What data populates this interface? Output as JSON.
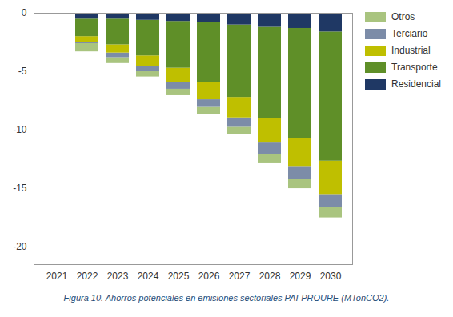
{
  "chart_data": {
    "type": "bar",
    "stacked": true,
    "caption": "Figura 10. Ahorros potenciales en emisiones sectoriales PAI-PROURE (MTonCO2).",
    "categories": [
      "2021",
      "2022",
      "2023",
      "2024",
      "2025",
      "2026",
      "2027",
      "2028",
      "2029",
      "2030"
    ],
    "series": [
      {
        "name": "Otros",
        "color": "#a9c47f",
        "values": [
          0,
          -0.7,
          -0.5,
          -0.45,
          -0.55,
          -0.6,
          -0.65,
          -0.75,
          -0.8,
          -0.9
        ]
      },
      {
        "name": "Terciario",
        "color": "#7c8ca8",
        "values": [
          0,
          -0.1,
          -0.4,
          -0.45,
          -0.55,
          -0.65,
          -0.8,
          -0.95,
          -1.1,
          -1.1
        ]
      },
      {
        "name": "Industrial",
        "color": "#bfbf00",
        "values": [
          0,
          -0.5,
          -0.7,
          -0.9,
          -1.25,
          -1.5,
          -1.75,
          -2.1,
          -2.4,
          -2.85
        ]
      },
      {
        "name": "Transporte",
        "color": "#5f8f28",
        "values": [
          0,
          -1.5,
          -2.2,
          -3.05,
          -4.0,
          -5.1,
          -6.2,
          -7.8,
          -9.4,
          -11.05
        ]
      },
      {
        "name": "Residencial",
        "color": "#1f3864",
        "values": [
          0,
          -0.5,
          -0.5,
          -0.6,
          -0.7,
          -0.8,
          -1.0,
          -1.2,
          -1.3,
          -1.6
        ]
      }
    ],
    "ylim": [
      -21.5,
      0
    ],
    "yticks": [
      0,
      -5,
      -10,
      -15,
      -20
    ],
    "grid": false,
    "legend": "right"
  }
}
